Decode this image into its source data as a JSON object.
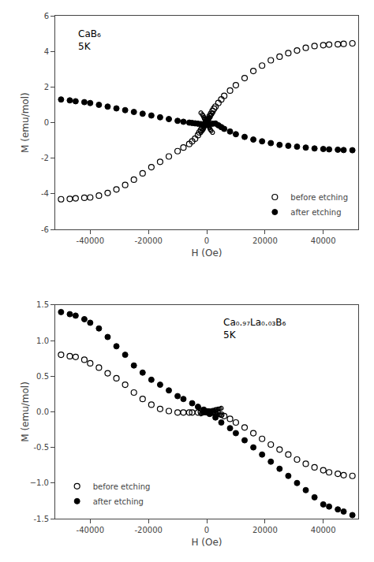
{
  "chart_data": [
    {
      "type": "scatter",
      "xlabel": "H (Oe)",
      "ylabel": "M (emu/mol)",
      "annotations": [
        "CaB₆\n5K"
      ],
      "legend": "lower right",
      "grid": false,
      "xlim": [
        -52000,
        52000
      ],
      "xticks": [
        -40000,
        -20000,
        0,
        20000,
        40000
      ],
      "ylim": [
        -6,
        6
      ],
      "yticks": [
        -6,
        -4,
        -2,
        0,
        2,
        4,
        6
      ],
      "series": [
        {
          "name": "before etching",
          "color": "#000000",
          "marker": "open",
          "x": [
            -50000,
            -47000,
            -45000,
            -42000,
            -40000,
            -37000,
            -34000,
            -31000,
            -28000,
            -25000,
            -22000,
            -19000,
            -16000,
            -13000,
            -10000,
            -8000,
            -6000,
            -5000,
            -4000,
            -3000,
            -2500,
            -2000,
            -1500,
            -1000,
            -500,
            -200,
            -100,
            0,
            100,
            200,
            500,
            1000,
            1500,
            2000,
            2500,
            3000,
            4000,
            5000,
            6000,
            8000,
            10000,
            13000,
            16000,
            19000,
            22000,
            25000,
            28000,
            31000,
            34000,
            37000,
            40000,
            42000,
            45000,
            47000,
            50000
          ],
          "values": [
            -4.3,
            -4.28,
            -4.25,
            -4.22,
            -4.2,
            -4.1,
            -3.95,
            -3.75,
            -3.5,
            -3.2,
            -2.85,
            -2.5,
            -2.2,
            -1.9,
            -1.6,
            -1.4,
            -1.2,
            -1.05,
            -0.9,
            -0.7,
            -0.55,
            -0.42,
            -0.28,
            -0.15,
            -0.06,
            -0.01,
            0.02,
            0.05,
            0.08,
            0.12,
            0.2,
            0.35,
            0.5,
            0.65,
            0.78,
            0.9,
            1.1,
            1.3,
            1.5,
            1.8,
            2.1,
            2.5,
            2.9,
            3.2,
            3.5,
            3.7,
            3.9,
            4.05,
            4.2,
            4.3,
            4.35,
            4.38,
            4.4,
            4.42,
            4.45
          ]
        },
        {
          "color": "#000000",
          "marker": "open",
          "x": [
            -2000,
            -1500,
            -1200,
            -1000,
            -800,
            -600,
            -400,
            -200,
            -100,
            0,
            100,
            200,
            400,
            600,
            800,
            1000,
            1200,
            1500,
            2000
          ],
          "values": [
            0.55,
            0.45,
            0.38,
            0.3,
            0.22,
            0.15,
            0.1,
            0.05,
            0.02,
            0.0,
            -0.02,
            -0.05,
            -0.1,
            -0.15,
            -0.22,
            -0.3,
            -0.38,
            -0.45,
            -0.55
          ]
        },
        {
          "color": "#000000",
          "marker": "open",
          "x": [
            -2000,
            -1500,
            -1200,
            -1000,
            -800,
            -600,
            -400,
            -200,
            -100,
            0,
            100,
            200,
            400,
            600,
            800,
            1000,
            1200,
            1500,
            2000
          ],
          "values": [
            -0.55,
            -0.45,
            -0.38,
            -0.3,
            -0.22,
            -0.15,
            -0.1,
            -0.05,
            -0.02,
            0.0,
            0.02,
            0.05,
            0.1,
            0.15,
            0.22,
            0.3,
            0.38,
            0.45,
            0.55
          ]
        },
        {
          "name": "after etching",
          "color": "#000000",
          "marker": "filled",
          "x": [
            -50000,
            -47000,
            -45000,
            -42000,
            -40000,
            -37000,
            -34000,
            -31000,
            -28000,
            -25000,
            -22000,
            -19000,
            -16000,
            -13000,
            -10000,
            -8000,
            -6000,
            -5000,
            -4000,
            -3000,
            -2000,
            -1000,
            -500,
            -200,
            -100,
            0,
            100,
            200,
            500,
            1000,
            2000,
            3000,
            4000,
            5000,
            6000,
            8000,
            10000,
            13000,
            16000,
            19000,
            22000,
            25000,
            28000,
            31000,
            34000,
            37000,
            40000,
            42000,
            45000,
            47000,
            50000
          ],
          "values": [
            1.3,
            1.25,
            1.2,
            1.15,
            1.1,
            1.0,
            0.9,
            0.8,
            0.7,
            0.6,
            0.5,
            0.4,
            0.3,
            0.2,
            0.1,
            0.05,
            0.0,
            -0.02,
            -0.04,
            -0.06,
            -0.08,
            -0.09,
            -0.1,
            -0.11,
            -0.11,
            -0.11,
            -0.11,
            -0.1,
            -0.09,
            -0.08,
            -0.06,
            -0.05,
            -0.15,
            -0.25,
            -0.35,
            -0.5,
            -0.65,
            -0.8,
            -0.95,
            -1.05,
            -1.15,
            -1.25,
            -1.3,
            -1.35,
            -1.4,
            -1.45,
            -1.48,
            -1.5,
            -1.52,
            -1.54,
            -1.55
          ]
        }
      ]
    },
    {
      "type": "scatter",
      "xlabel": "H (Oe)",
      "ylabel": "M (emu/mol)",
      "annotations": [
        "Ca₀.₉₇La₀.₀₃B₆\n5K"
      ],
      "legend": "lower left",
      "grid": false,
      "xlim": [
        -52000,
        52000
      ],
      "xticks": [
        -40000,
        -20000,
        0,
        20000,
        40000
      ],
      "ylim": [
        -1.5,
        1.5
      ],
      "yticks": [
        -1.5,
        {
          "value": -1.0,
          "label": "−1.0"
        },
        -0.5,
        {
          "value": 0.0,
          "label": "0.0"
        },
        0.5,
        {
          "value": 1.0,
          "label": "1.0"
        },
        1.5
      ],
      "series": [
        {
          "name": "before etching",
          "color": "#000000",
          "marker": "open",
          "x": [
            -50000,
            -47000,
            -45000,
            -42000,
            -40000,
            -37000,
            -34000,
            -31000,
            -28000,
            -25000,
            -22000,
            -19000,
            -16000,
            -13000,
            -10000,
            -8000,
            -6000,
            -5000,
            -3000,
            -2000,
            -1000,
            -500,
            -200,
            -100,
            0,
            100,
            200,
            500,
            1000,
            2000,
            3000,
            5000,
            6000,
            8000,
            10000,
            13000,
            16000,
            19000,
            22000,
            25000,
            28000,
            31000,
            34000,
            37000,
            40000,
            42000,
            45000,
            47000,
            50000
          ],
          "values": [
            0.8,
            0.78,
            0.77,
            0.73,
            0.68,
            0.62,
            0.54,
            0.47,
            0.38,
            0.27,
            0.18,
            0.1,
            0.04,
            0.01,
            -0.01,
            -0.01,
            -0.01,
            -0.01,
            -0.01,
            0.0,
            0.0,
            0.0,
            0.0,
            0.0,
            0.0,
            0.0,
            0.0,
            0.0,
            0.0,
            -0.01,
            -0.02,
            -0.04,
            -0.06,
            -0.1,
            -0.15,
            -0.22,
            -0.3,
            -0.38,
            -0.46,
            -0.53,
            -0.6,
            -0.67,
            -0.73,
            -0.78,
            -0.82,
            -0.85,
            -0.87,
            -0.89,
            -0.9
          ]
        },
        {
          "color": "#000000",
          "marker": "open",
          "x": [
            -2000,
            -1500,
            -1000,
            -500,
            -200,
            -100,
            0,
            100,
            200,
            500,
            1000,
            1500,
            2000,
            2500,
            3000,
            3500,
            4000,
            4500,
            5000
          ],
          "values": [
            0.03,
            0.02,
            0.01,
            0.01,
            0.0,
            0.0,
            0.0,
            0.0,
            0.0,
            0.0,
            -0.01,
            -0.01,
            -0.02,
            -0.02,
            -0.03,
            -0.03,
            -0.04,
            -0.04,
            -0.05
          ]
        },
        {
          "color": "#000000",
          "marker": "open",
          "x": [
            -2000,
            -1500,
            -1000,
            -500,
            -200,
            -100,
            0,
            100,
            200,
            500,
            1000,
            1500,
            2000,
            2500,
            3000,
            3500,
            4000,
            4500,
            5000
          ],
          "values": [
            -0.03,
            -0.02,
            -0.01,
            -0.01,
            0.0,
            0.0,
            0.0,
            0.0,
            0.0,
            0.0,
            0.01,
            0.01,
            0.02,
            0.02,
            0.03,
            0.03,
            0.04,
            0.04,
            0.05
          ]
        },
        {
          "name": "after etching",
          "color": "#000000",
          "marker": "filled",
          "x": [
            -50000,
            -47000,
            -45000,
            -42000,
            -40000,
            -37000,
            -34000,
            -31000,
            -28000,
            -25000,
            -22000,
            -19000,
            -16000,
            -13000,
            -10000,
            -8000,
            -5000,
            -3000,
            -1000,
            -500,
            -200,
            0,
            200,
            500,
            1000,
            3000,
            5000,
            8000,
            10000,
            13000,
            16000,
            19000,
            22000,
            25000,
            28000,
            31000,
            34000,
            37000,
            40000,
            42000,
            45000,
            47000,
            50000
          ],
          "values": [
            1.4,
            1.37,
            1.35,
            1.3,
            1.25,
            1.17,
            1.05,
            0.92,
            0.8,
            0.65,
            0.55,
            0.45,
            0.38,
            0.3,
            0.22,
            0.18,
            0.12,
            0.07,
            0.03,
            0.01,
            0.0,
            0.0,
            -0.01,
            -0.01,
            -0.03,
            -0.08,
            -0.15,
            -0.23,
            -0.3,
            -0.4,
            -0.5,
            -0.6,
            -0.7,
            -0.8,
            -0.9,
            -1.0,
            -1.1,
            -1.2,
            -1.3,
            -1.33,
            -1.37,
            -1.4,
            -1.45
          ]
        }
      ]
    }
  ]
}
